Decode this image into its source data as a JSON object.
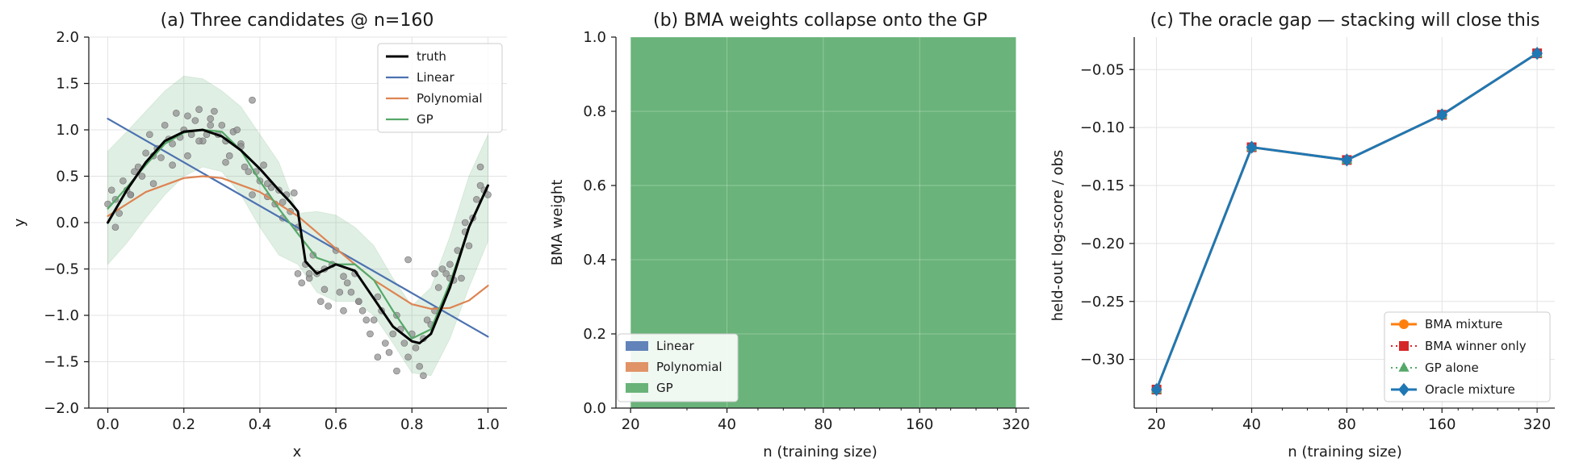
{
  "chart_data": [
    {
      "type": "scatter",
      "title": "(a) Three candidates @ n=160",
      "xlabel": "x",
      "ylabel": "y",
      "xlim": [
        -0.05,
        1.05
      ],
      "ylim": [
        -2.0,
        2.0
      ],
      "xticks": [
        "0.0",
        "0.2",
        "0.4",
        "0.6",
        "0.8",
        "1.0"
      ],
      "yticks": [
        "−2.0",
        "−1.5",
        "−1.0",
        "−0.5",
        "0.0",
        "0.5",
        "1.0",
        "1.5",
        "2.0"
      ],
      "grid": true,
      "legend_position": "top-right",
      "series": [
        {
          "name": "truth",
          "type": "line",
          "color": "#000000",
          "x": [
            0.0,
            0.05,
            0.1,
            0.15,
            0.2,
            0.25,
            0.3,
            0.35,
            0.4,
            0.45,
            0.48,
            0.5,
            0.52,
            0.55,
            0.6,
            0.65,
            0.7,
            0.75,
            0.8,
            0.82,
            0.85,
            0.9,
            0.95,
            1.0
          ],
          "y": [
            0.0,
            0.35,
            0.65,
            0.88,
            0.98,
            1.0,
            0.93,
            0.78,
            0.58,
            0.35,
            0.22,
            0.12,
            -0.42,
            -0.55,
            -0.45,
            -0.52,
            -0.82,
            -1.12,
            -1.28,
            -1.3,
            -1.2,
            -0.7,
            -0.05,
            0.4
          ]
        },
        {
          "name": "Linear",
          "type": "line",
          "color": "#4c72b0",
          "x": [
            0.0,
            1.0
          ],
          "y": [
            1.12,
            -1.23
          ]
        },
        {
          "name": "Polynomial",
          "type": "line",
          "color": "#dd8452",
          "x": [
            0.0,
            0.1,
            0.2,
            0.25,
            0.3,
            0.4,
            0.5,
            0.6,
            0.7,
            0.8,
            0.85,
            0.9,
            0.95,
            1.0
          ],
          "y": [
            0.07,
            0.33,
            0.48,
            0.5,
            0.48,
            0.33,
            0.07,
            -0.28,
            -0.62,
            -0.88,
            -0.93,
            -0.92,
            -0.84,
            -0.68
          ]
        },
        {
          "name": "GP",
          "type": "line",
          "color": "#55a868",
          "x": [
            0.0,
            0.05,
            0.1,
            0.15,
            0.2,
            0.25,
            0.3,
            0.35,
            0.4,
            0.45,
            0.5,
            0.55,
            0.6,
            0.65,
            0.7,
            0.75,
            0.8,
            0.85,
            0.9,
            0.95,
            1.0
          ],
          "y": [
            0.15,
            0.38,
            0.62,
            0.85,
            0.97,
            1.0,
            0.98,
            0.78,
            0.45,
            0.15,
            -0.12,
            -0.38,
            -0.45,
            -0.45,
            -0.62,
            -0.95,
            -1.25,
            -1.15,
            -0.65,
            -0.05,
            0.4
          ],
          "band_lower": [
            -0.45,
            -0.22,
            0.05,
            0.3,
            0.5,
            0.6,
            0.55,
            0.3,
            -0.05,
            -0.35,
            -0.45,
            -0.75,
            -0.85,
            -0.85,
            -1.0,
            -1.3,
            -1.62,
            -1.65,
            -1.25,
            -0.7,
            -0.2
          ],
          "band_upper": [
            0.77,
            0.98,
            1.2,
            1.42,
            1.58,
            1.55,
            1.42,
            1.25,
            0.95,
            0.65,
            0.1,
            0.12,
            0.08,
            -0.05,
            -0.25,
            -0.6,
            -0.9,
            -0.7,
            -0.15,
            0.5,
            0.95
          ]
        }
      ],
      "observations": {
        "color": "#8c8c8c",
        "x": [
          0.0,
          0.01,
          0.02,
          0.03,
          0.04,
          0.05,
          0.06,
          0.07,
          0.08,
          0.09,
          0.1,
          0.11,
          0.12,
          0.13,
          0.14,
          0.15,
          0.16,
          0.17,
          0.18,
          0.19,
          0.2,
          0.21,
          0.22,
          0.23,
          0.24,
          0.25,
          0.26,
          0.27,
          0.28,
          0.29,
          0.3,
          0.31,
          0.32,
          0.33,
          0.34,
          0.35,
          0.36,
          0.37,
          0.38,
          0.39,
          0.4,
          0.41,
          0.42,
          0.43,
          0.44,
          0.45,
          0.46,
          0.47,
          0.48,
          0.49,
          0.5,
          0.51,
          0.52,
          0.53,
          0.54,
          0.55,
          0.56,
          0.57,
          0.58,
          0.59,
          0.6,
          0.61,
          0.62,
          0.63,
          0.64,
          0.65,
          0.66,
          0.67,
          0.68,
          0.69,
          0.7,
          0.71,
          0.72,
          0.73,
          0.74,
          0.75,
          0.76,
          0.77,
          0.78,
          0.79,
          0.8,
          0.81,
          0.82,
          0.83,
          0.84,
          0.85,
          0.86,
          0.87,
          0.88,
          0.89,
          0.9,
          0.91,
          0.92,
          0.93,
          0.94,
          0.95,
          0.96,
          0.97,
          0.98,
          0.99,
          1.0,
          0.02,
          0.06,
          0.12,
          0.17,
          0.21,
          0.24,
          0.27,
          0.31,
          0.35,
          0.38,
          0.42,
          0.46,
          0.5,
          0.53,
          0.57,
          0.62,
          0.66,
          0.71,
          0.76,
          0.79,
          0.83,
          0.86,
          0.9,
          0.94,
          0.98
        ],
        "y": [
          0.2,
          0.35,
          0.25,
          0.1,
          0.45,
          0.35,
          0.3,
          0.55,
          0.6,
          0.5,
          0.75,
          0.95,
          0.72,
          0.8,
          0.7,
          1.05,
          0.9,
          0.85,
          1.18,
          0.92,
          1.0,
          1.15,
          0.95,
          1.1,
          1.22,
          0.88,
          0.95,
          1.12,
          1.2,
          0.95,
          1.05,
          0.88,
          0.72,
          0.98,
          1.0,
          0.85,
          0.6,
          0.55,
          0.3,
          0.55,
          0.45,
          0.62,
          0.28,
          0.38,
          0.2,
          0.35,
          0.05,
          0.3,
          0.12,
          0.32,
          -0.55,
          -0.65,
          -0.45,
          -0.6,
          -0.35,
          -0.55,
          -0.85,
          -0.72,
          -0.9,
          -0.45,
          -0.3,
          -0.75,
          -0.58,
          -0.65,
          -0.75,
          -0.55,
          -0.85,
          -0.95,
          -1.05,
          -1.2,
          -1.05,
          -0.8,
          -0.95,
          -1.3,
          -1.4,
          -1.2,
          -1.0,
          -1.15,
          -1.3,
          -1.45,
          -1.2,
          -1.35,
          -1.55,
          -1.25,
          -1.05,
          -1.1,
          -0.95,
          -0.7,
          -0.5,
          -0.55,
          -0.45,
          -0.62,
          -0.3,
          -0.6,
          -0.1,
          -0.25,
          0.05,
          0.25,
          0.4,
          0.35,
          0.3,
          -0.05,
          0.3,
          0.42,
          0.62,
          0.72,
          0.88,
          1.05,
          0.65,
          0.82,
          1.32,
          0.42,
          0.22,
          -0.05,
          -0.55,
          -0.5,
          -0.95,
          -0.85,
          -1.45,
          -1.6,
          -0.4,
          -1.65,
          -0.55,
          -0.6,
          0.0,
          0.6
        ]
      }
    },
    {
      "type": "area",
      "title": "(b) BMA weights collapse onto the GP",
      "xlabel": "n (training size)",
      "ylabel": "BMA weight",
      "x_scale": "log2",
      "xlim": [
        18,
        352
      ],
      "ylim": [
        0.0,
        1.0
      ],
      "categories": [
        20,
        40,
        80,
        160,
        320
      ],
      "xticks": [
        "20",
        "40",
        "80",
        "160",
        "320"
      ],
      "yticks": [
        "0.0",
        "0.2",
        "0.4",
        "0.6",
        "0.8",
        "1.0"
      ],
      "grid": true,
      "legend_position": "bottom-left",
      "series": [
        {
          "name": "Linear",
          "color": "#4c72b0",
          "values": [
            0,
            0,
            0,
            0,
            0
          ]
        },
        {
          "name": "Polynomial",
          "color": "#dd8452",
          "values": [
            0,
            0,
            0,
            0,
            0
          ]
        },
        {
          "name": "GP",
          "color": "#55a868",
          "values": [
            1,
            1,
            1,
            1,
            1
          ]
        }
      ]
    },
    {
      "type": "line",
      "title": "(c) The oracle gap — stacking will close this",
      "xlabel": "n (training size)",
      "ylabel": "held-out log-score / obs",
      "x_scale": "log2",
      "xlim": [
        17,
        364
      ],
      "ylim": [
        -0.342,
        -0.022
      ],
      "categories": [
        20,
        40,
        80,
        160,
        320
      ],
      "xticks": [
        "20",
        "40",
        "80",
        "160",
        "320"
      ],
      "yticks": [
        "−0.30",
        "−0.25",
        "−0.20",
        "−0.15",
        "−0.10",
        "−0.05"
      ],
      "grid": true,
      "legend_position": "bottom-right",
      "series": [
        {
          "name": "BMA mixture",
          "color": "#ff7f0e",
          "marker": "circle",
          "line": "solid",
          "values": [
            -0.326,
            -0.117,
            -0.128,
            -0.089,
            -0.036
          ]
        },
        {
          "name": "BMA winner only",
          "color": "#d62728",
          "marker": "square",
          "line": "dotted",
          "values": [
            -0.326,
            -0.117,
            -0.128,
            -0.089,
            -0.036
          ]
        },
        {
          "name": "GP alone",
          "color": "#55a868",
          "marker": "triangle",
          "line": "dotted",
          "values": [
            -0.326,
            -0.117,
            -0.128,
            -0.089,
            -0.036
          ]
        },
        {
          "name": "Oracle mixture",
          "color": "#1f77b4",
          "marker": "diamond",
          "line": "solid",
          "values": [
            -0.326,
            -0.117,
            -0.128,
            -0.089,
            -0.036
          ]
        }
      ]
    }
  ]
}
